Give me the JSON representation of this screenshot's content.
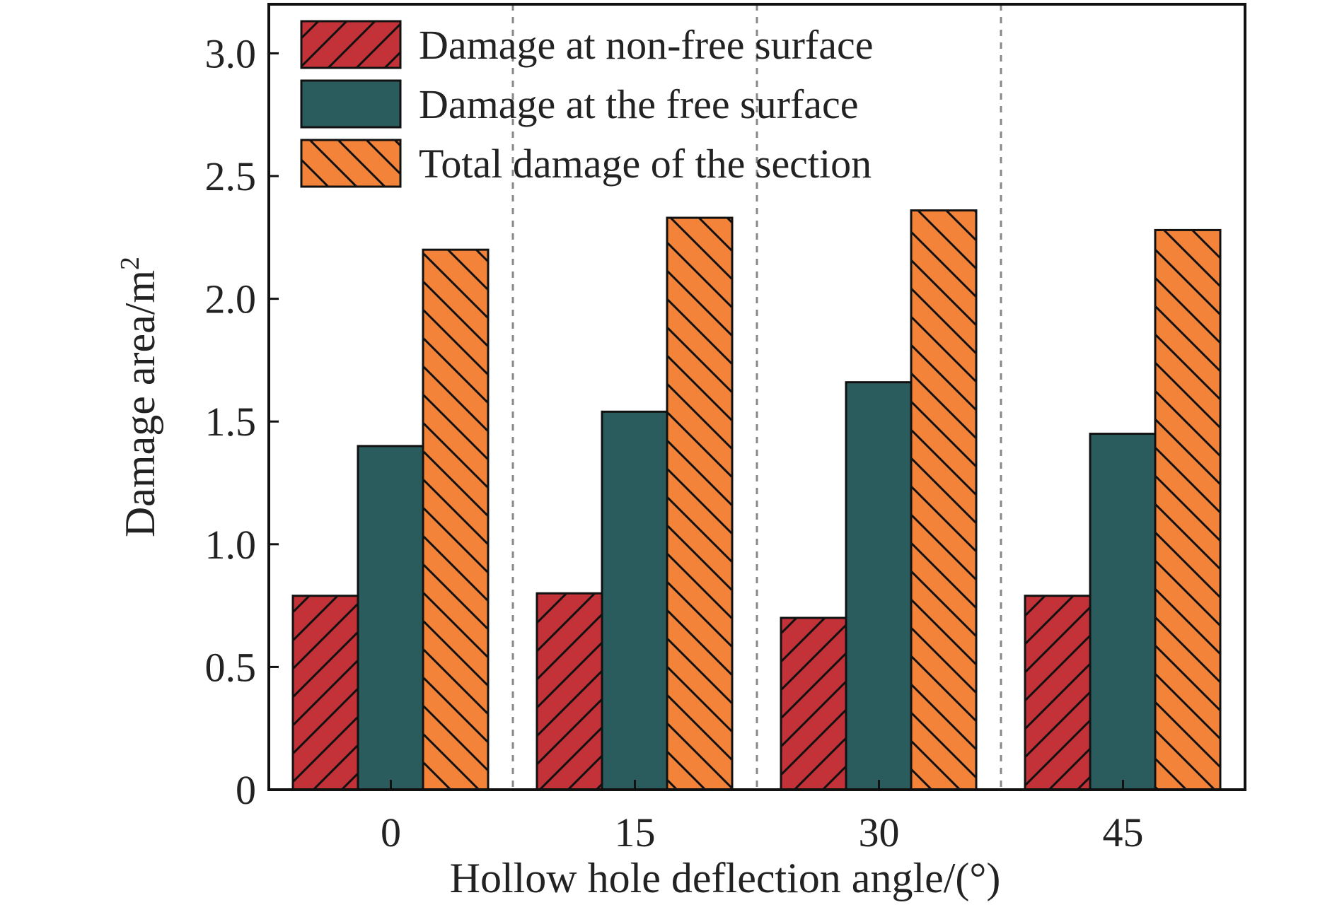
{
  "chart_data": {
    "type": "bar",
    "categories": [
      "0",
      "15",
      "30",
      "45"
    ],
    "series": [
      {
        "name": "Damage at non-free surface",
        "values": [
          0.79,
          0.8,
          0.7,
          0.79
        ],
        "color": "#c23238",
        "hatch": "forward"
      },
      {
        "name": "Damage at the free surface",
        "values": [
          1.4,
          1.54,
          1.66,
          1.45
        ],
        "color": "#2b5c5d",
        "hatch": "none"
      },
      {
        "name": "Total damage of the section",
        "values": [
          2.2,
          2.33,
          2.36,
          2.28
        ],
        "color": "#f4833a",
        "hatch": "backward"
      }
    ],
    "xlabel": "Hollow hole deflection angle/(°)",
    "ylabel": "Damage area/m",
    "ylabel_sup": "2",
    "ylim": [
      0,
      3.2
    ],
    "yticks": [
      0,
      0.5,
      1.0,
      1.5,
      2.0,
      2.5,
      3.0
    ],
    "ytick_labels": [
      "0",
      "0.5",
      "1.0",
      "1.5",
      "2.0",
      "2.5",
      "3.0"
    ],
    "grid": false,
    "category_separators": "dashed",
    "legend_position": "top-left"
  }
}
